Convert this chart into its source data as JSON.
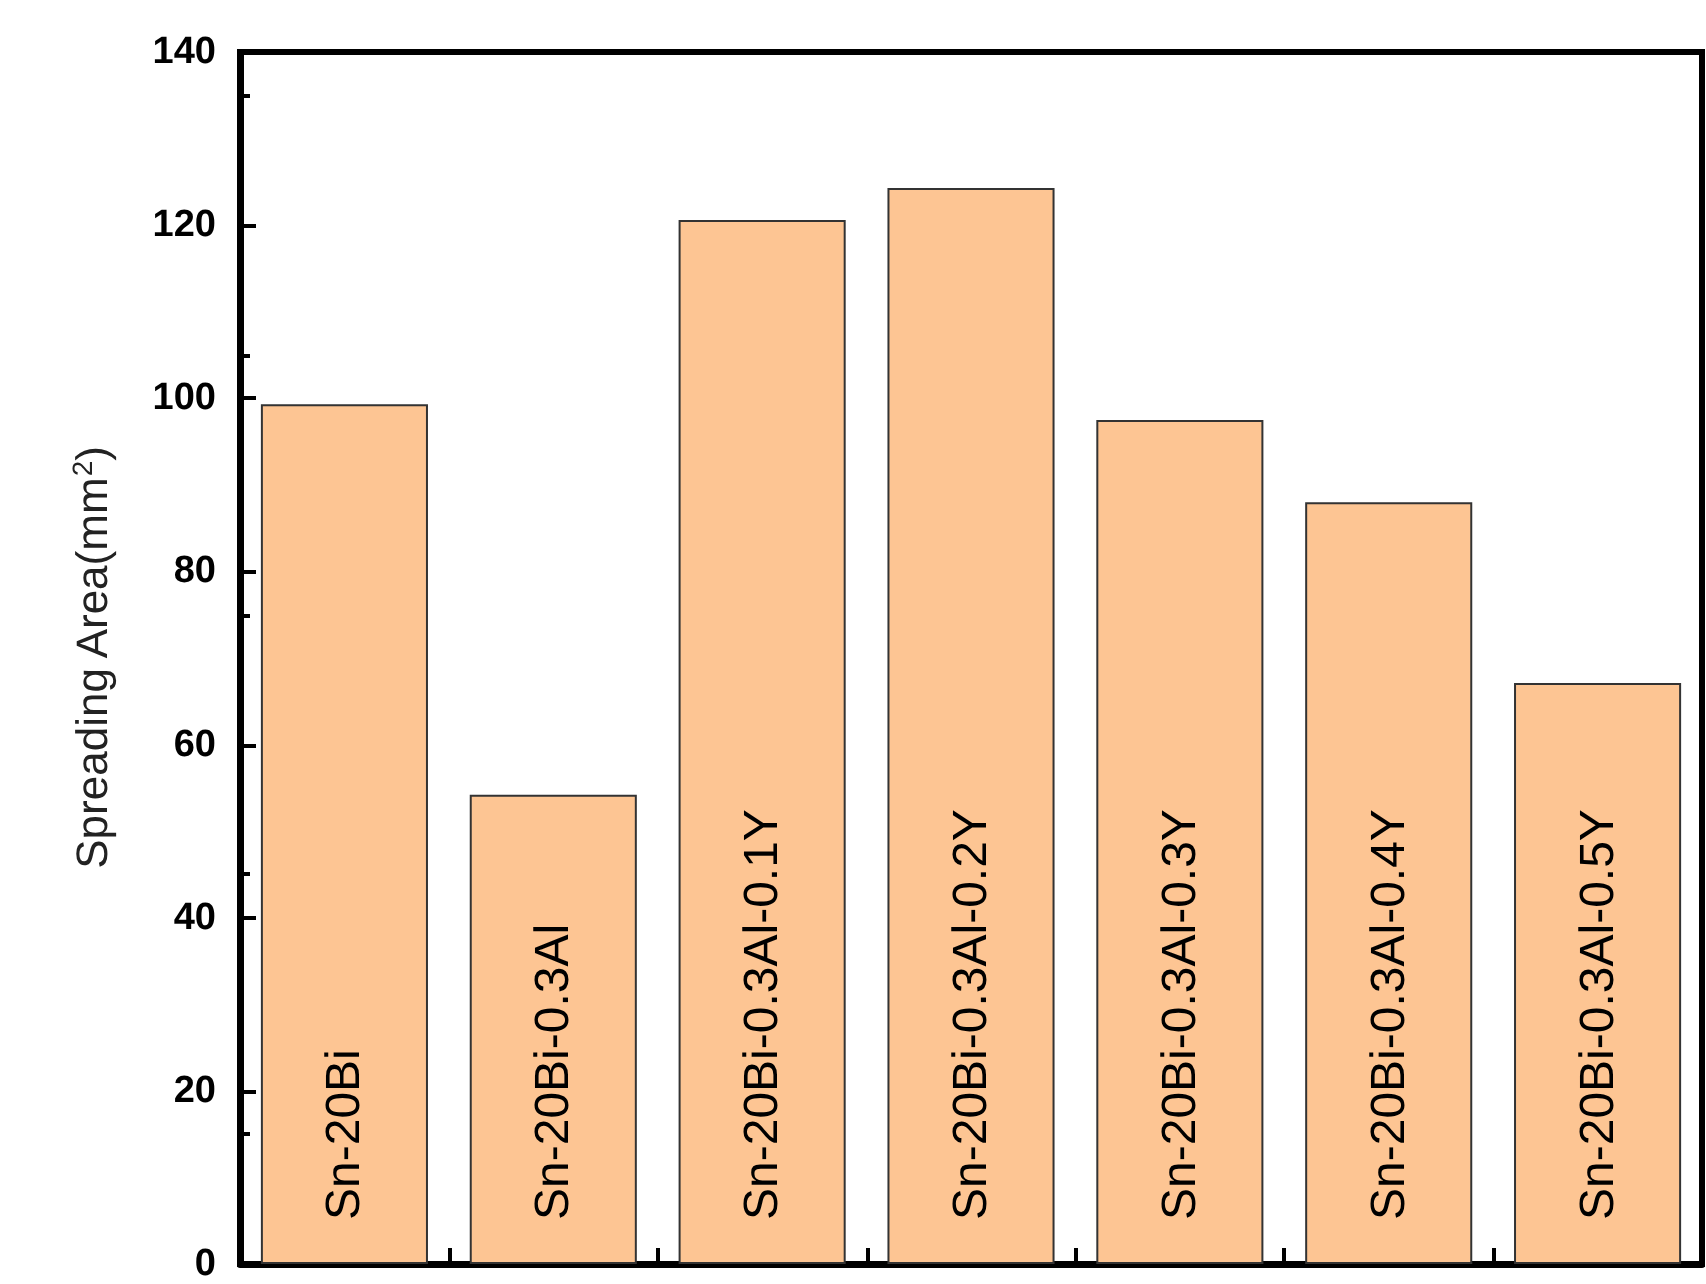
{
  "chart_data": {
    "type": "bar",
    "ylabel": "Spreading Area(mm$^{2}$)",
    "categories": [
      "Sn-20Bi",
      "Sn-20Bi-0.3Al",
      "Sn-20Bi-0.3Al-0.1Y",
      "Sn-20Bi-0.3Al-0.2Y",
      "Sn-20Bi-0.3Al-0.3Y",
      "Sn-20Bi-0.3Al-0.4Y",
      "Sn-20Bi-0.3Al-0.5Y"
    ],
    "values": [
      99.3,
      54.2,
      120.6,
      124.3,
      97.5,
      88,
      67.1
    ],
    "color": "#fdc593",
    "ylim": [
      0,
      140
    ],
    "yticks": [
      0,
      20,
      40,
      60,
      80,
      100,
      120,
      140
    ],
    "grid": false
  }
}
